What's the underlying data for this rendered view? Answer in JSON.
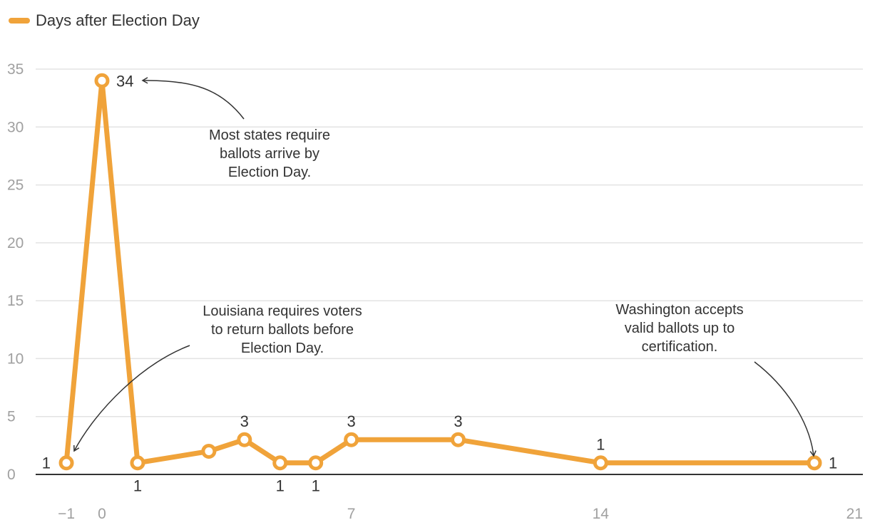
{
  "colors": {
    "series": "#f0a33a"
  },
  "chart_data": {
    "type": "line",
    "title": "",
    "xlabel": "",
    "ylabel": "",
    "xlim": [
      -2,
      21
    ],
    "ylim": [
      0,
      35
    ],
    "xticks": [
      -1,
      0,
      7,
      14,
      21
    ],
    "xtick_labels": [
      "−1",
      "0",
      "7",
      "14",
      "21"
    ],
    "yticks": [
      0,
      5,
      10,
      15,
      20,
      25,
      30,
      35
    ],
    "grid": true,
    "legend": {
      "position": "top-left",
      "entries": [
        "Days after Election Day"
      ]
    },
    "series": [
      {
        "name": "Days after Election Day",
        "x": [
          -1,
          0,
          1,
          3,
          4,
          5,
          6,
          7,
          10,
          14,
          20
        ],
        "values": [
          1,
          34,
          1,
          2,
          3,
          1,
          1,
          3,
          3,
          1,
          1
        ],
        "labels": [
          {
            "x": -1,
            "y": 1,
            "text": "1",
            "pos": "left"
          },
          {
            "x": 0,
            "y": 34,
            "text": "34",
            "pos": "right"
          },
          {
            "x": 1,
            "y": 1,
            "text": "1",
            "pos": "below"
          },
          {
            "x": 4,
            "y": 3,
            "text": "3",
            "pos": "above"
          },
          {
            "x": 5,
            "y": 1,
            "text": "1",
            "pos": "below"
          },
          {
            "x": 6,
            "y": 1,
            "text": "1",
            "pos": "below"
          },
          {
            "x": 7,
            "y": 3,
            "text": "3",
            "pos": "above"
          },
          {
            "x": 10,
            "y": 3,
            "text": "3",
            "pos": "above"
          },
          {
            "x": 14,
            "y": 1,
            "text": "1",
            "pos": "above"
          },
          {
            "x": 20,
            "y": 1,
            "text": "1",
            "pos": "right"
          }
        ]
      }
    ],
    "annotations": [
      {
        "lines": [
          "Most states require",
          "ballots arrive by",
          "Election Day."
        ],
        "target": [
          0,
          34
        ]
      },
      {
        "lines": [
          "Louisiana requires voters",
          "to return ballots before",
          "Election Day."
        ],
        "target": [
          -1,
          1
        ]
      },
      {
        "lines": [
          "Washington accepts",
          "valid ballots up to",
          "certification."
        ],
        "target": [
          20,
          1
        ]
      }
    ]
  }
}
